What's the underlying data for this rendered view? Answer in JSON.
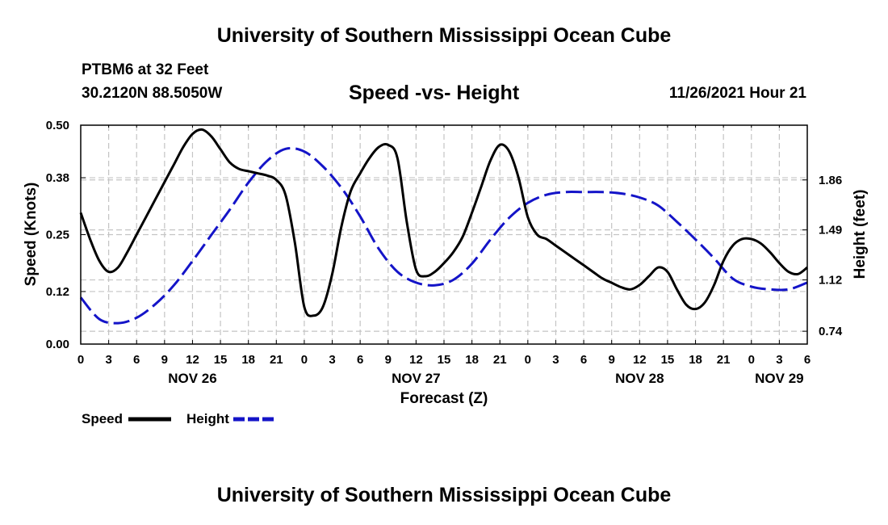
{
  "page": {
    "title": "University of Southern Mississippi Ocean Cube",
    "footer_title": "University of Southern Mississippi Ocean Cube",
    "station": "PTBM6 at 32 Feet",
    "coordinates": "30.2120N  88.5050W",
    "subtitle": "Speed -vs- Height",
    "datetime": "11/26/2021 Hour 21"
  },
  "chart_data": {
    "type": "line",
    "title": "Speed -vs- Height",
    "xlabel": "Forecast (Z)",
    "ylabel": "Speed (Knots)",
    "y2label": "Height (feet)",
    "x_unit": "hours since 00Z Nov 26",
    "xlim": [
      0,
      78
    ],
    "ylim": [
      0,
      0.5
    ],
    "y2lim": [
      0.645,
      2.265
    ],
    "x_ticks": [
      0,
      3,
      6,
      9,
      12,
      15,
      18,
      21,
      24,
      27,
      30,
      33,
      36,
      39,
      42,
      45,
      48,
      51,
      54,
      57,
      60,
      63,
      66,
      69,
      72,
      75,
      78
    ],
    "x_tick_labels": [
      "0",
      "3",
      "6",
      "9",
      "12",
      "15",
      "18",
      "21",
      "0",
      "3",
      "6",
      "9",
      "12",
      "15",
      "18",
      "21",
      "0",
      "3",
      "6",
      "9",
      "12",
      "15",
      "18",
      "21",
      "0",
      "3",
      "6"
    ],
    "date_labels": [
      {
        "x": 12,
        "label": "NOV 26"
      },
      {
        "x": 36,
        "label": "NOV 27"
      },
      {
        "x": 60,
        "label": "NOV 28"
      },
      {
        "x": 75,
        "label": "NOV 29"
      }
    ],
    "y_ticks": [
      0.0,
      0.12,
      0.25,
      0.38,
      0.5
    ],
    "y_tick_labels": [
      "0.00",
      "0.12",
      "0.25",
      "0.38",
      "0.50"
    ],
    "y2_ticks": [
      0.74,
      1.12,
      1.49,
      1.86
    ],
    "y2_tick_labels": [
      "0.74",
      "1.12",
      "1.49",
      "1.86"
    ],
    "grid": true,
    "series": [
      {
        "name": "Speed",
        "axis": "left",
        "color": "#000000",
        "dash": "solid",
        "x": [
          0,
          1,
          2,
          3,
          4,
          5,
          6,
          7,
          8,
          9,
          10,
          11,
          12,
          13,
          14,
          15,
          16,
          17,
          18,
          19,
          20,
          21,
          22,
          23,
          24,
          25,
          26,
          27,
          28,
          29,
          30,
          31,
          32,
          33,
          34,
          35,
          36,
          37,
          38,
          39,
          40,
          41,
          42,
          43,
          44,
          45,
          46,
          47,
          48,
          49,
          50,
          51,
          52,
          53,
          54,
          55,
          56,
          57,
          58,
          59,
          60,
          61,
          62,
          63,
          64,
          65,
          66,
          67,
          68,
          69,
          70,
          71,
          72,
          73,
          74,
          75,
          76,
          77,
          78
        ],
        "values": [
          0.3,
          0.24,
          0.19,
          0.165,
          0.175,
          0.21,
          0.25,
          0.29,
          0.33,
          0.37,
          0.41,
          0.45,
          0.48,
          0.49,
          0.475,
          0.445,
          0.415,
          0.4,
          0.395,
          0.39,
          0.385,
          0.375,
          0.34,
          0.23,
          0.085,
          0.065,
          0.085,
          0.16,
          0.27,
          0.35,
          0.39,
          0.425,
          0.45,
          0.455,
          0.425,
          0.28,
          0.17,
          0.155,
          0.165,
          0.185,
          0.21,
          0.245,
          0.3,
          0.36,
          0.42,
          0.455,
          0.44,
          0.38,
          0.29,
          0.25,
          0.24,
          0.225,
          0.21,
          0.195,
          0.18,
          0.165,
          0.15,
          0.14,
          0.13,
          0.125,
          0.135,
          0.155,
          0.175,
          0.165,
          0.125,
          0.09,
          0.08,
          0.095,
          0.135,
          0.19,
          0.225,
          0.24,
          0.24,
          0.23,
          0.21,
          0.185,
          0.165,
          0.16,
          0.175
        ]
      },
      {
        "name": "Height",
        "axis": "right",
        "color": "#1414c8",
        "dash": "dashed",
        "x": [
          0,
          2,
          4,
          6,
          8,
          10,
          12,
          14,
          16,
          18,
          20,
          22,
          24,
          26,
          28,
          30,
          32,
          34,
          36,
          38,
          40,
          42,
          44,
          46,
          48,
          50,
          52,
          54,
          56,
          58,
          60,
          62,
          64,
          66,
          68,
          70,
          72,
          74,
          76,
          78
        ],
        "values": [
          0.99,
          0.83,
          0.8,
          0.84,
          0.94,
          1.08,
          1.26,
          1.45,
          1.64,
          1.84,
          2.0,
          2.09,
          2.07,
          1.96,
          1.8,
          1.59,
          1.35,
          1.18,
          1.1,
          1.08,
          1.12,
          1.24,
          1.42,
          1.58,
          1.69,
          1.75,
          1.77,
          1.77,
          1.77,
          1.76,
          1.73,
          1.67,
          1.55,
          1.42,
          1.28,
          1.13,
          1.07,
          1.05,
          1.05,
          1.1
        ]
      }
    ],
    "legend": {
      "placement": "bottom-left",
      "entries": [
        {
          "label": "Speed",
          "color": "#000000"
        },
        {
          "label": "Height",
          "color": "#1414c8"
        }
      ]
    }
  }
}
